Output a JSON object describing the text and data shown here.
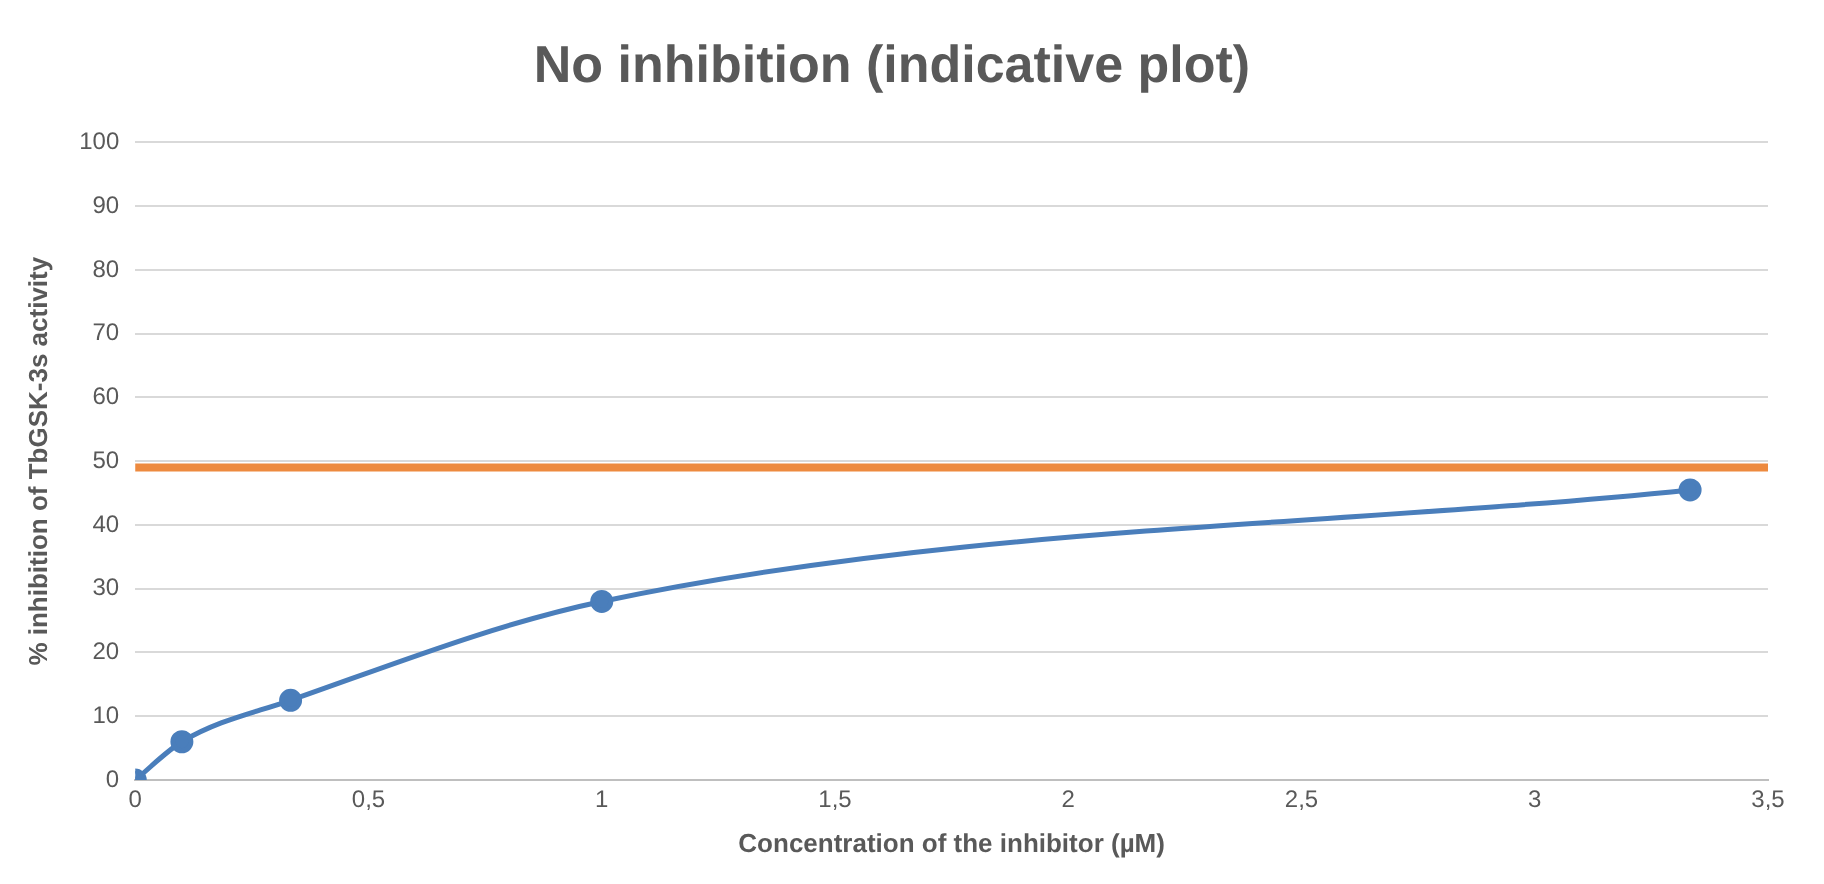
{
  "chart_data": {
    "type": "line",
    "title": "No inhibition (indicative plot)",
    "xlabel": "Concentration of the inhibitor (µM)",
    "ylabel": "% inhibition of TbGSK-3s activity",
    "x": [
      0,
      0.1,
      0.333,
      1,
      3.333
    ],
    "series": [
      {
        "color": "#4a7ebb",
        "values": [
          0,
          6,
          12.5,
          28,
          45.5
        ]
      }
    ],
    "ref_lines": [
      {
        "axis": "y",
        "value": 49,
        "color": "#ed8a3f"
      }
    ],
    "xlim": [
      0,
      3.5
    ],
    "xticks": [
      0,
      {
        "value": 0.5,
        "label": "0,5"
      },
      1,
      {
        "value": 1.5,
        "label": "1,5"
      },
      2,
      {
        "value": 2.5,
        "label": "2,5"
      },
      3,
      {
        "value": 3.5,
        "label": "3,5"
      }
    ],
    "ylim": [
      0,
      100
    ],
    "yticks": [
      0,
      10,
      20,
      30,
      40,
      50,
      60,
      70,
      80,
      90,
      100
    ],
    "grid": "y",
    "marker": "circle",
    "line_style": "solid",
    "legend": false
  }
}
